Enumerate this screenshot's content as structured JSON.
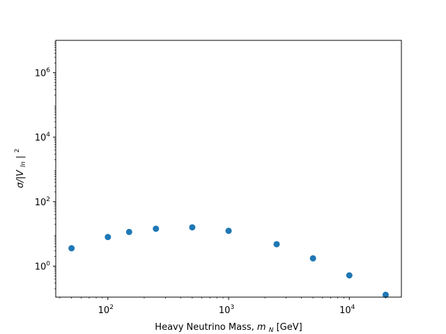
{
  "chart_data": {
    "type": "scatter",
    "xscale": "log",
    "yscale": "log",
    "xlim": [
      37,
      27000
    ],
    "ylim": [
      0.11,
      10000000
    ],
    "xlabel": "Heavy Neutrino Mass,",
    "xlabel_math": "m",
    "xlabel_math_sub": "N",
    "xlabel_unit": " [GeV]",
    "ylabel": "σ/|V",
    "ylabel_sub": "ln",
    "ylabel_end": "|",
    "ylabel_sup": "2",
    "x_ticks": [
      {
        "value": 100,
        "base": "10",
        "exp": "2"
      },
      {
        "value": 1000,
        "base": "10",
        "exp": "3"
      },
      {
        "value": 10000,
        "base": "10",
        "exp": "4"
      }
    ],
    "y_ticks": [
      {
        "value": 1,
        "base": "10",
        "exp": "0"
      },
      {
        "value": 100,
        "base": "10",
        "exp": "2"
      },
      {
        "value": 10000,
        "base": "10",
        "exp": "4"
      },
      {
        "value": 1000000,
        "base": "10",
        "exp": "6"
      }
    ],
    "grid": false,
    "marker_color": "#1f77b4",
    "points": [
      {
        "x": 50,
        "y": 3.6
      },
      {
        "x": 100,
        "y": 8.0
      },
      {
        "x": 150,
        "y": 11.5
      },
      {
        "x": 250,
        "y": 14.5
      },
      {
        "x": 500,
        "y": 16.0
      },
      {
        "x": 1000,
        "y": 12.5
      },
      {
        "x": 2500,
        "y": 4.8
      },
      {
        "x": 5000,
        "y": 1.75
      },
      {
        "x": 10000,
        "y": 0.52
      },
      {
        "x": 20000,
        "y": 0.13
      }
    ]
  }
}
